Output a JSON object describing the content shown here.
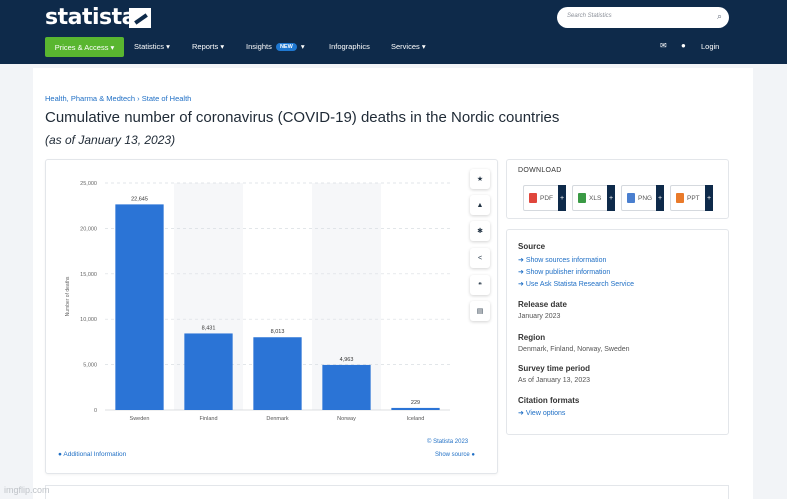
{
  "header": {
    "logo_text": "statista",
    "search_placeholder": "Search Statistics",
    "nav": {
      "prices_access": "Prices & Access ▾",
      "statistics": "Statistics ▾",
      "reports": "Reports ▾",
      "insights": "Insights",
      "insights_badge": "NEW",
      "insights_caret": "▾",
      "infographics": "Infographics",
      "services": "Services ▾",
      "login": "Login"
    }
  },
  "breadcrumb": {
    "topic": "Health, Pharma & Medtech",
    "separator": "›",
    "subtopic": "State of Health"
  },
  "page_title": "Cumulative number of coronavirus (COVID-19) deaths in the Nordic countries",
  "page_subtitle": "(as of January 13, 2023)",
  "chart_footer": {
    "additional_info": "Additional Information",
    "credit": "© Statista 2023",
    "show_source": "Show source"
  },
  "chart_data": {
    "type": "bar",
    "categories": [
      "Sweden",
      "Finland",
      "Denmark",
      "Norway",
      "Iceland"
    ],
    "values": [
      22645,
      8431,
      8013,
      4963,
      229
    ],
    "value_labels": [
      "22,645",
      "8,431",
      "8,013",
      "4,963",
      "229"
    ],
    "ylabel": "Number of deaths",
    "ylim": [
      0,
      25000
    ],
    "yticks": [
      0,
      5000,
      10000,
      15000,
      20000,
      25000
    ],
    "ytick_labels": [
      "0",
      "5,000",
      "10,000",
      "15,000",
      "20,000",
      "25,000"
    ],
    "grid": true,
    "bar_color": "#2b74d6"
  },
  "download": {
    "title": "DOWNLOAD",
    "buttons": [
      {
        "label": "PDF",
        "color": "#e0463c"
      },
      {
        "label": "XLS",
        "color": "#3a9a45"
      },
      {
        "label": "PNG",
        "color": "#4a7fcf"
      },
      {
        "label": "PPT",
        "color": "#e97a2a"
      }
    ],
    "plus": "+"
  },
  "info": {
    "source_title": "Source",
    "source_links": [
      "Show sources information",
      "Show publisher information",
      "Use Ask Statista Research Service"
    ],
    "release_title": "Release date",
    "release_value": "January 2023",
    "region_title": "Region",
    "region_value": "Denmark, Finland, Norway, Sweden",
    "survey_title": "Survey time period",
    "survey_value": "As of January 13, 2023",
    "citation_title": "Citation formats",
    "citation_link": "View options"
  },
  "watermark": "imgflip.com"
}
